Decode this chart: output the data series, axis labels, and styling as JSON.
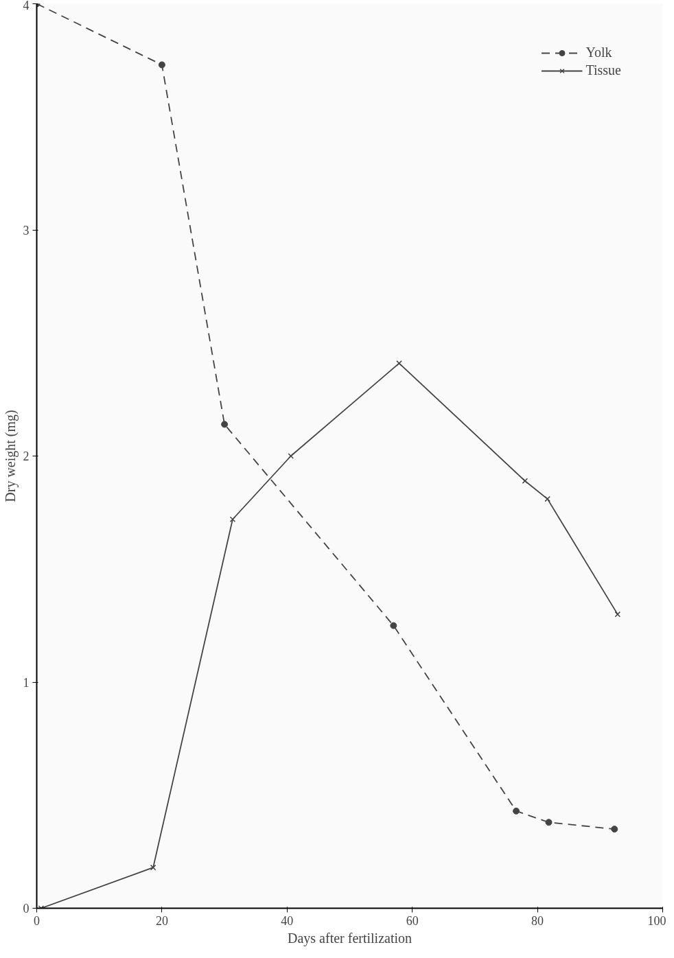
{
  "chart_data": {
    "type": "line",
    "xlabel": "Days after fertilization",
    "ylabel": "Dry weight (mg)",
    "xlim": [
      0,
      100
    ],
    "ylim": [
      0,
      4
    ],
    "xticks": [
      0,
      20,
      40,
      60,
      80,
      100
    ],
    "yticks": [
      0,
      1,
      2,
      3,
      4
    ],
    "grid": false,
    "legend": "top right",
    "series": [
      {
        "name": "Yolk",
        "color": "#444444",
        "line_style": "dashed",
        "marker": "circle",
        "x": [
          0,
          20,
          30,
          57,
          76.6,
          81.8,
          92.3
        ],
        "values": [
          4.0,
          3.73,
          2.14,
          1.25,
          0.43,
          0.38,
          0.35
        ]
      },
      {
        "name": "Tissue",
        "color": "#444444",
        "line_style": "solid",
        "marker": "cross",
        "x": [
          0.7,
          18.6,
          31.3,
          40.6,
          57.9,
          78,
          81.6,
          92.8
        ],
        "values": [
          0,
          0.18,
          1.72,
          2.0,
          2.41,
          1.89,
          1.81,
          1.3
        ]
      }
    ]
  }
}
